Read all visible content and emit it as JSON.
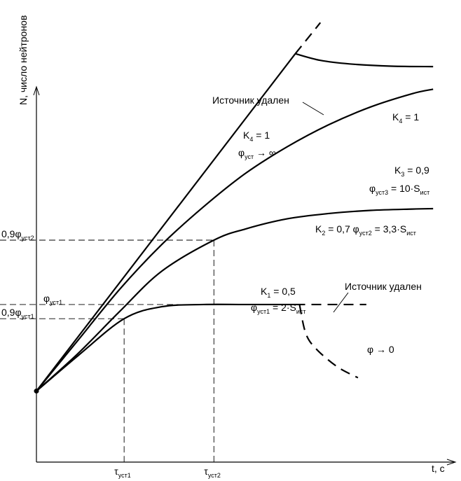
{
  "chart_data": {
    "type": "line",
    "title": "",
    "ylabel": "N, число нейтронов",
    "xlabel": "t, с",
    "grid": false,
    "legend": "none",
    "x_ticks": [
      {
        "main": "τ",
        "sub": "уст1",
        "x": 0.21
      },
      {
        "main": "τ",
        "sub": "уст2",
        "x": 0.425
      }
    ],
    "y_ticks": [
      {
        "main": "0,9φ",
        "sub": "уст2",
        "y": 0.5
      },
      {
        "main": "φ",
        "sub": "уст1",
        "y": 0.355
      },
      {
        "main": "0,9φ",
        "sub": "уст1",
        "y": 0.323
      }
    ],
    "series": [
      {
        "id": "k4",
        "x": [
          0,
          0.62
        ],
        "y": [
          0.16,
          0.92
        ]
      },
      {
        "id": "k4_removed",
        "style": "dashed",
        "x": [
          0.62,
          0.68
        ],
        "y": [
          0.92,
          0.99
        ]
      },
      {
        "id": "k4_after",
        "x": [
          0.62,
          0.68,
          0.75,
          0.85,
          0.95
        ],
        "y": [
          0.92,
          0.905,
          0.897,
          0.892,
          0.891
        ]
      },
      {
        "id": "k3",
        "x": [
          0,
          0.1,
          0.2,
          0.3,
          0.4,
          0.5,
          0.6,
          0.7,
          0.8,
          0.9,
          0.95
        ],
        "y": [
          0.16,
          0.275,
          0.39,
          0.49,
          0.575,
          0.65,
          0.71,
          0.76,
          0.8,
          0.83,
          0.84
        ]
      },
      {
        "id": "k2",
        "x": [
          0,
          0.1,
          0.2,
          0.3,
          0.425,
          0.5,
          0.6,
          0.7,
          0.8,
          0.9,
          0.95
        ],
        "y": [
          0.16,
          0.245,
          0.34,
          0.43,
          0.5,
          0.525,
          0.548,
          0.56,
          0.567,
          0.57,
          0.571
        ]
      },
      {
        "id": "k1",
        "x": [
          0,
          0.1,
          0.21,
          0.3,
          0.4,
          0.5,
          0.62
        ],
        "y": [
          0.16,
          0.24,
          0.323,
          0.35,
          0.355,
          0.355,
          0.355
        ]
      },
      {
        "id": "k1_continued",
        "style": "dashed",
        "x": [
          0.62,
          0.79
        ],
        "y": [
          0.355,
          0.355
        ]
      },
      {
        "id": "k1_decay",
        "style": "dashed",
        "x": [
          0.63,
          0.645,
          0.67,
          0.72,
          0.77
        ],
        "y": [
          0.355,
          0.29,
          0.255,
          0.215,
          0.19
        ]
      }
    ],
    "annotations": {
      "source_removed_top": "Источник удален",
      "source_removed_bottom": "Источник удален",
      "k4_right": {
        "k": "K",
        "ksub": "4",
        "rest": " = 1"
      },
      "k4_center": {
        "k": "K",
        "ksub": "4",
        "rest": " = 1"
      },
      "phi_inf": {
        "phi": "φ",
        "sub": "уст",
        "rest": " → ∞"
      },
      "k3": {
        "k": "K",
        "ksub": "3",
        "rest": " = 0,9"
      },
      "phi3": {
        "phi": "φ",
        "sub": "уст3",
        "rest": " = 10·S",
        "tail": "ист"
      },
      "k2": {
        "k": "K",
        "ksub": "2",
        "rest": " = 0,7  φ",
        "psub": "уст2",
        "rest2": " = 3,3·S",
        "tail": "ист"
      },
      "k1": {
        "k": "K",
        "ksub": "1",
        "rest": " = 0,5"
      },
      "phi1": {
        "phi": "φ",
        "sub": "уст1",
        "rest": " = 2·S",
        "tail": "ист"
      },
      "phi_zero": "φ → 0"
    }
  }
}
